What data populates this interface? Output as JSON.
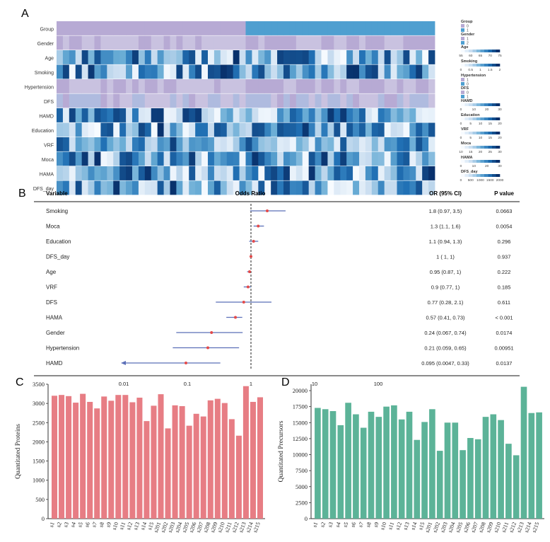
{
  "panels": {
    "a": "A",
    "b": "B",
    "c": "C",
    "d": "D"
  },
  "chart_data": [
    {
      "type": "heatmap",
      "panel": "A",
      "rows": [
        "Group",
        "Gender",
        "Age",
        "Smoking",
        "Hypertension",
        "DFS",
        "HAMD",
        "Education",
        "VRF",
        "Moca",
        "HAMA",
        "DFS_day"
      ],
      "columns_per_row": 60,
      "group_split_column": 30,
      "legend": [
        {
          "title": "Group",
          "ticks": [
            "0",
            "1"
          ]
        },
        {
          "title": "Gender",
          "ticks": [
            "1",
            "2"
          ]
        },
        {
          "title": "Age",
          "ticks": [
            "55",
            "60",
            "65",
            "70",
            "75"
          ]
        },
        {
          "title": "Smoking",
          "ticks": [
            "0",
            "0.5",
            "1",
            "1.5",
            "2"
          ]
        },
        {
          "title": "Hypertension",
          "ticks": [
            "1",
            "0"
          ]
        },
        {
          "title": "DFS",
          "ticks": [
            "0",
            "1"
          ]
        },
        {
          "title": "HAMD",
          "ticks": [
            "0",
            "10",
            "20",
            "30"
          ]
        },
        {
          "title": "Education",
          "ticks": [
            "0",
            "5",
            "10",
            "15",
            "20"
          ]
        },
        {
          "title": "VRF",
          "ticks": [
            "0",
            "5",
            "10",
            "15",
            "20"
          ]
        },
        {
          "title": "Moca",
          "ticks": [
            "10",
            "15",
            "20",
            "25",
            "30"
          ]
        },
        {
          "title": "HAMA",
          "ticks": [
            "0",
            "10",
            "20",
            "30"
          ]
        },
        {
          "title": "DFS_day",
          "ticks": [
            "0",
            "500",
            "1000",
            "1500",
            "2000"
          ]
        }
      ],
      "colors": {
        "categorical_a": "#b7aad4",
        "categorical_b": "#4f9fd0",
        "low": "#ffffff",
        "high": "#08306b"
      }
    },
    {
      "type": "forest",
      "panel": "B",
      "headers": {
        "variable": "Variable",
        "or": "Odds Ratio",
        "ci": "OR (95% CI)",
        "p": "P value"
      },
      "x_scale": "log",
      "xlim": [
        0.005,
        1000
      ],
      "ticks": [
        0.01,
        0.1,
        1,
        10,
        100
      ],
      "tick_labels": [
        "0.01",
        "0.1",
        "1",
        "10",
        "100"
      ],
      "reference_line": 1,
      "rows": [
        {
          "variable": "Smoking",
          "or": 1.8,
          "lo": 0.97,
          "hi": 3.5,
          "ci_text": "1.8 (0.97, 3.5)",
          "p": "0.0663"
        },
        {
          "variable": "Moca",
          "or": 1.3,
          "lo": 1.1,
          "hi": 1.6,
          "ci_text": "1.3 (1.1, 1.6)",
          "p": "0.0054"
        },
        {
          "variable": "Education",
          "or": 1.1,
          "lo": 0.94,
          "hi": 1.3,
          "ci_text": "1.1 (0.94, 1.3)",
          "p": "0.296"
        },
        {
          "variable": "DFS_day",
          "or": 1,
          "lo": 1,
          "hi": 1,
          "ci_text": "1 (  1,    1)",
          "p": "0.937"
        },
        {
          "variable": "Age",
          "or": 0.95,
          "lo": 0.87,
          "hi": 1,
          "ci_text": "0.95 (0.87,    1)",
          "p": "0.222"
        },
        {
          "variable": "VRF",
          "or": 0.9,
          "lo": 0.77,
          "hi": 1,
          "ci_text": "0.9 (0.77,    1)",
          "p": "0.185"
        },
        {
          "variable": "DFS",
          "or": 0.77,
          "lo": 0.28,
          "hi": 2.1,
          "ci_text": "0.77 (0.28, 2.1)",
          "p": "0.611"
        },
        {
          "variable": "HAMA",
          "or": 0.57,
          "lo": 0.41,
          "hi": 0.73,
          "ci_text": "0.57 (0.41, 0.73)",
          "p": "< 0.001"
        },
        {
          "variable": "Gender",
          "or": 0.24,
          "lo": 0.067,
          "hi": 0.74,
          "ci_text": "0.24 (0.067, 0.74)",
          "p": "0.0174"
        },
        {
          "variable": "Hypertension",
          "or": 0.21,
          "lo": 0.059,
          "hi": 0.65,
          "ci_text": "0.21 (0.059, 0.65)",
          "p": "0.00951"
        },
        {
          "variable": "HAMD",
          "or": 0.095,
          "lo": 0.0047,
          "hi": 0.33,
          "ci_text": "0.095 (0.0047, 0.33)",
          "p": "0.0137",
          "arrow_left": true
        }
      ],
      "colors": {
        "line": "#5b6fb8",
        "point": "#e34a4a"
      }
    },
    {
      "type": "bar",
      "panel": "C",
      "ylabel": "Quantitated Proteins",
      "ylim": [
        0,
        3500
      ],
      "yticks": [
        0,
        500,
        1000,
        1500,
        2000,
        2500,
        3000,
        3500
      ],
      "categories": [
        "s1",
        "s2",
        "s3",
        "s4",
        "s5",
        "s6",
        "s7",
        "s8",
        "s9",
        "s10",
        "s11",
        "s12",
        "s13",
        "s14",
        "s15",
        "s201",
        "s202",
        "s203",
        "s204",
        "s205",
        "s206",
        "s207",
        "s208",
        "s209",
        "s210",
        "s211",
        "s212",
        "s213",
        "s214",
        "s215"
      ],
      "values": [
        3200,
        3220,
        3190,
        3020,
        3250,
        3040,
        2870,
        3180,
        3070,
        3220,
        3220,
        3030,
        3150,
        2540,
        2940,
        3240,
        2350,
        2950,
        2930,
        2420,
        2730,
        2660,
        3080,
        3120,
        3010,
        2590,
        2160,
        3450,
        3040,
        3160
      ],
      "color": "#e77d84"
    },
    {
      "type": "bar",
      "panel": "D",
      "ylabel": "Quantitated Precursors",
      "ylim": [
        0,
        21000
      ],
      "yticks": [
        0,
        2500,
        5000,
        7500,
        10000,
        12500,
        15000,
        17500,
        20000
      ],
      "categories": [
        "s1",
        "s2",
        "s3",
        "s4",
        "s5",
        "s6",
        "s7",
        "s8",
        "s9",
        "s10",
        "s11",
        "s12",
        "s13",
        "s14",
        "s15",
        "s201",
        "s202",
        "s203",
        "s204",
        "s205",
        "s206",
        "s207",
        "s208",
        "s209",
        "s210",
        "s211",
        "s212",
        "s213",
        "s214",
        "s215"
      ],
      "values": [
        17300,
        17100,
        16800,
        14600,
        18100,
        16300,
        14200,
        16700,
        15900,
        17500,
        17700,
        15500,
        16700,
        12300,
        15100,
        17100,
        10600,
        15000,
        15000,
        10700,
        12600,
        12400,
        15900,
        16300,
        15400,
        11700,
        9900,
        20600,
        16500,
        16600
      ],
      "color": "#5cb398"
    }
  ]
}
